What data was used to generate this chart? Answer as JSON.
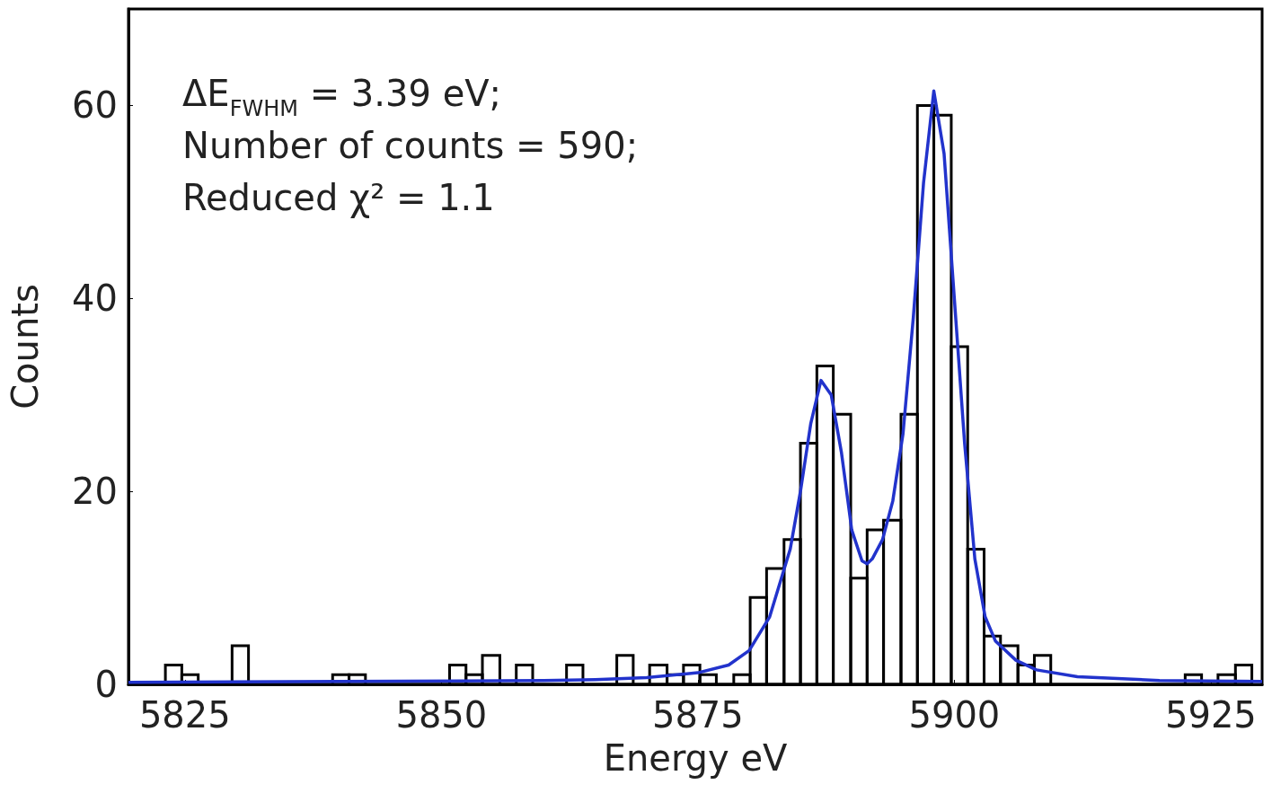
{
  "chart_data": {
    "type": "histogram",
    "xlabel": "Energy eV",
    "ylabel": "Counts",
    "annotations": [
      "ΔE$_{FWHM}$ = 3.39 eV;",
      "Number of counts = 590;",
      "Reduced χ² = 1.1"
    ],
    "xlim": [
      5819.5,
      5930
    ],
    "xticks": [
      5825,
      5850,
      5875,
      5900,
      5925
    ],
    "ylim": [
      0,
      70
    ],
    "yticks": [
      0,
      20,
      40,
      60
    ],
    "grid": false,
    "bins": [
      5823.1,
      5824.7,
      5826.3,
      5829.6,
      5831.2,
      5839.4,
      5841.0,
      5842.6,
      5850.8,
      5852.4,
      5854.0,
      5855.7,
      5857.3,
      5858.9,
      5862.2,
      5863.8,
      5867.1,
      5868.7,
      5870.3,
      5872.0,
      5873.6,
      5875.2,
      5876.8,
      5878.5,
      5880.1,
      5881.7,
      5883.4,
      5885.0,
      5886.6,
      5888.2,
      5889.9,
      5891.5,
      5893.1,
      5894.8,
      5896.4,
      5898.0,
      5899.7,
      5901.3,
      5902.9,
      5904.5,
      5906.2,
      5907.8,
      5909.4,
      5922.5,
      5924.1,
      5925.7,
      5927.4,
      5929.0
    ],
    "series": [
      {
        "type": "histogram",
        "color": "#000000",
        "values": [
          2,
          1,
          0,
          4,
          0,
          1,
          1,
          0,
          2,
          1,
          3,
          0,
          2,
          0,
          2,
          0,
          3,
          0,
          2,
          1,
          2,
          1,
          0,
          1,
          9,
          12,
          15,
          25,
          33,
          28,
          11,
          16,
          17,
          28,
          60,
          59,
          35,
          14,
          5,
          4,
          2,
          3,
          0,
          1,
          0,
          1,
          2
        ]
      },
      {
        "type": "line",
        "color": "#2233cc",
        "x": [
          5819.5,
          5840,
          5860,
          5865,
          5870,
          5875,
          5878,
          5880,
          5882,
          5884,
          5885,
          5886,
          5887,
          5888,
          5889,
          5890,
          5891,
          5891.5,
          5892,
          5893,
          5894,
          5895,
          5896,
          5897,
          5898,
          5899,
          5900,
          5901,
          5902,
          5903,
          5904,
          5906,
          5908,
          5912,
          5920,
          5930
        ],
        "values": [
          0.2,
          0.3,
          0.4,
          0.5,
          0.7,
          1.2,
          2,
          3.5,
          7,
          14,
          20,
          27,
          31.5,
          30,
          24,
          16,
          12.8,
          12.5,
          13,
          15,
          19,
          26,
          38,
          52,
          61.5,
          55,
          40,
          25,
          13,
          7,
          4.5,
          2.5,
          1.5,
          0.8,
          0.4,
          0.3
        ]
      }
    ]
  }
}
